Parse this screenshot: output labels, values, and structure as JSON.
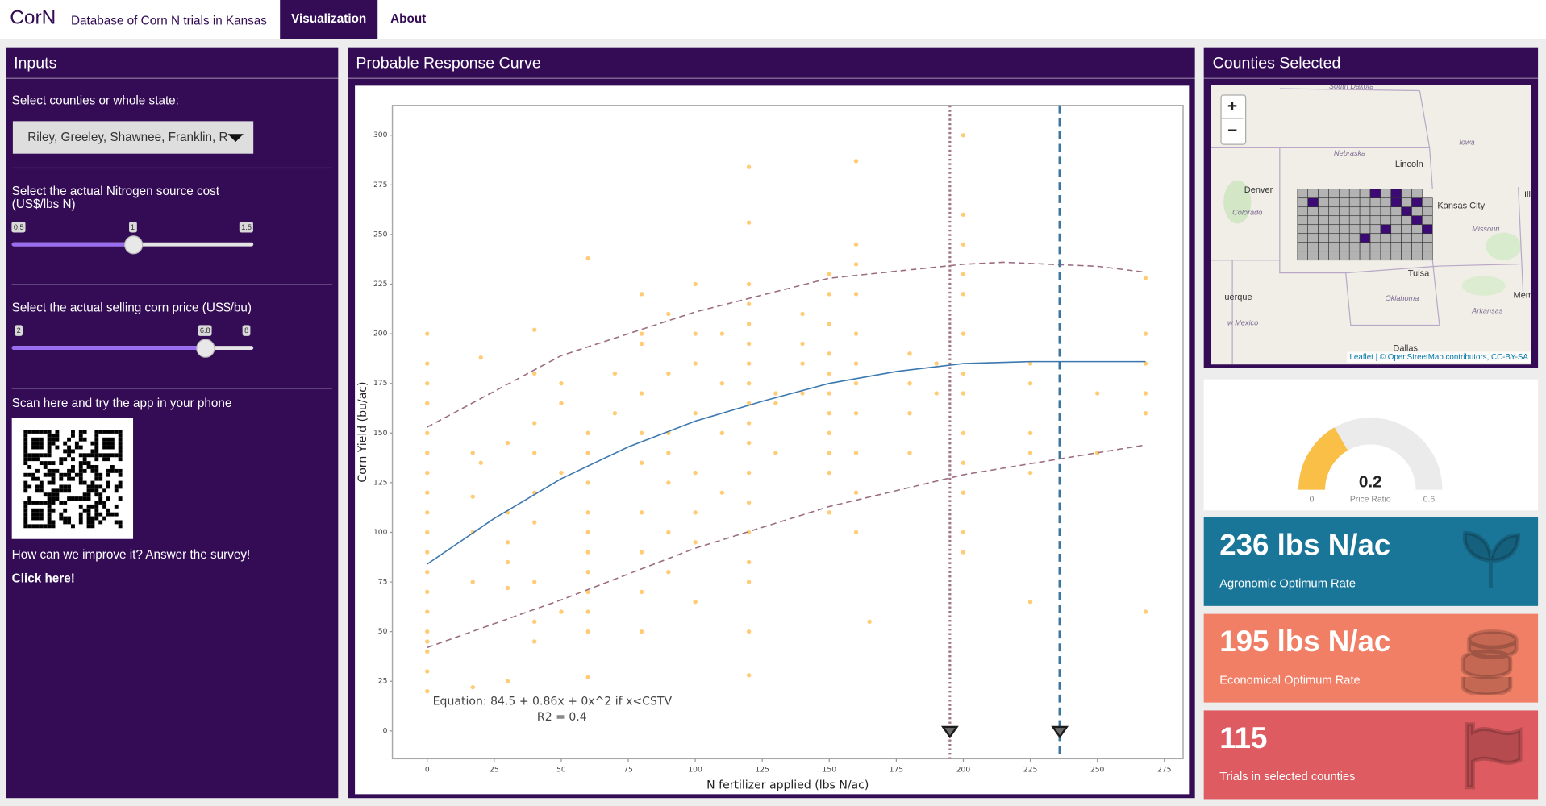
{
  "navbar": {
    "brand": "CorN",
    "subtitle": "Database of Corn N trials in Kansas",
    "tabs": [
      "Visualization",
      "About"
    ]
  },
  "inputs": {
    "title": "Inputs",
    "county_label": "Select counties or whole state:",
    "county_value": "Riley, Greeley, Shawnee, Franklin, R",
    "sliders": [
      {
        "label": [
          "Select the actual Nitrogen source cost",
          "(US$/lbs N)"
        ],
        "min": 0.5,
        "max": 1.5,
        "value": 1
      },
      {
        "label": [
          "Select the actual selling corn price (US$/bu)"
        ],
        "min": 2,
        "max": 8,
        "value": 6.8
      }
    ],
    "qr_label": "Scan here and try the app in your phone",
    "survey": "How can we improve it? Answer the survey!",
    "link": "Click here!"
  },
  "chart_data": {
    "type": "scatter",
    "title": "Probable Response Curve",
    "x_label": "N fertilizer applied (lbs N/ac)",
    "y_label": "Corn Yield (bu/ac)",
    "xlim": [
      -13,
      282
    ],
    "ylim": [
      -14,
      315
    ],
    "xticks": [
      0,
      25,
      50,
      75,
      100,
      125,
      150,
      175,
      200,
      225,
      250,
      275
    ],
    "yticks": [
      0,
      25,
      50,
      75,
      100,
      125,
      150,
      175,
      200,
      225,
      250,
      275,
      300
    ],
    "point_color": "#ffb12b",
    "point_groups": [
      {
        "x": 0,
        "values": [
          200,
          185,
          175,
          165,
          150,
          140,
          130,
          120,
          110,
          100,
          90,
          80,
          70,
          60,
          50,
          45,
          40,
          30,
          20
        ]
      },
      {
        "x": 17,
        "values": [
          140,
          118,
          100,
          75,
          22
        ]
      },
      {
        "x": 20,
        "values": [
          188,
          135
        ]
      },
      {
        "x": 30,
        "values": [
          145,
          110,
          95,
          85,
          72,
          25
        ]
      },
      {
        "x": 40,
        "values": [
          202,
          180,
          155,
          140,
          120,
          105,
          75,
          55,
          45
        ]
      },
      {
        "x": 50,
        "values": [
          175,
          165,
          130,
          60
        ]
      },
      {
        "x": 60,
        "values": [
          238,
          150,
          140,
          125,
          110,
          100,
          90,
          80,
          70,
          60,
          50,
          27
        ]
      },
      {
        "x": 70,
        "values": [
          180,
          160
        ]
      },
      {
        "x": 80,
        "values": [
          220,
          200,
          195,
          170,
          150,
          135,
          110,
          90,
          70,
          50
        ]
      },
      {
        "x": 90,
        "values": [
          210,
          180,
          150,
          140,
          125,
          100,
          80
        ]
      },
      {
        "x": 100,
        "values": [
          225,
          200,
          185,
          160,
          130,
          110,
          95,
          65
        ]
      },
      {
        "x": 110,
        "values": [
          200,
          175,
          150,
          120
        ]
      },
      {
        "x": 120,
        "values": [
          284,
          256,
          225,
          215,
          205,
          195,
          185,
          175,
          165,
          155,
          145,
          130,
          115,
          100,
          85,
          75,
          50,
          28
        ]
      },
      {
        "x": 130,
        "values": [
          170,
          165,
          140
        ]
      },
      {
        "x": 140,
        "values": [
          210,
          195,
          185,
          170
        ]
      },
      {
        "x": 150,
        "values": [
          230,
          220,
          205,
          190,
          180,
          170,
          160,
          150,
          140,
          130,
          110
        ]
      },
      {
        "x": 160,
        "values": [
          287,
          245,
          235,
          220,
          200,
          185,
          175,
          160,
          140,
          120,
          100
        ]
      },
      {
        "x": 165,
        "values": [
          55
        ]
      },
      {
        "x": 180,
        "values": [
          190,
          175,
          160,
          140
        ]
      },
      {
        "x": 190,
        "values": [
          185,
          170
        ]
      },
      {
        "x": 200,
        "values": [
          300,
          260,
          245,
          230,
          220,
          200,
          180,
          170,
          150,
          135,
          120,
          100,
          90
        ]
      },
      {
        "x": 225,
        "values": [
          185,
          175,
          150,
          140,
          130,
          65
        ]
      },
      {
        "x": 250,
        "values": [
          170,
          140
        ]
      },
      {
        "x": 268,
        "values": [
          228,
          200,
          185,
          170,
          160,
          60
        ]
      }
    ],
    "lines": [
      {
        "x": [
          0,
          25,
          50,
          75,
          100,
          125,
          150,
          175,
          200,
          225,
          236,
          268
        ],
        "values": [
          84,
          107,
          127,
          143,
          156,
          166,
          175,
          181,
          185,
          186,
          186,
          186
        ],
        "color": "#3b78b0",
        "dash": "solid"
      },
      {
        "x": [
          0,
          50,
          100,
          150,
          200,
          215,
          250,
          268
        ],
        "values": [
          153,
          189,
          211,
          228,
          235,
          236,
          234,
          231
        ],
        "color": "#9b6c82",
        "dash": "dashed"
      },
      {
        "x": [
          0,
          50,
          100,
          150,
          200,
          236,
          268
        ],
        "values": [
          42,
          66,
          92,
          113,
          129,
          137,
          144
        ],
        "color": "#9b6c82",
        "dash": "dashed"
      }
    ],
    "reference_lines": [
      {
        "x": 195,
        "color": "#a07585",
        "dash": "dotted"
      },
      {
        "x": 236,
        "color": "#3b75a0",
        "dash": "dashed"
      }
    ],
    "annotations": [
      "Equation:  84.5 + 0.86x + 0x^2 if x<CSTV",
      "R2 =  0.4"
    ]
  },
  "map": {
    "title": "Counties Selected",
    "zoom_in": "+",
    "zoom_out": "−",
    "attribution": "Leaflet | © OpenStreetMap contributors, CC-BY-SA",
    "labels": [
      "South Dakota",
      "Nebraska",
      "Iowa",
      "Lincoln",
      "Denver",
      "Colorado",
      "Kansas City",
      "Illin",
      "Missouri",
      "Tulsa",
      "uerque",
      "Oklahoma",
      "Memph",
      "w Mexico",
      "Arkansas",
      "Dallas"
    ]
  },
  "gauge": {
    "value": 0.2,
    "min": 0,
    "max": 0.6,
    "label": "Price Ratio",
    "color": "#f9bf46"
  },
  "value_boxes": [
    {
      "value": "236 lbs N/ac",
      "label": "Agronomic Optimum Rate",
      "color": "#1a7699"
    },
    {
      "value": "195 lbs N/ac",
      "label": "Economical Optimum Rate",
      "color": "#f07f66"
    },
    {
      "value": 115,
      "label": "Trials in selected counties",
      "color": "#dd5b61"
    }
  ]
}
